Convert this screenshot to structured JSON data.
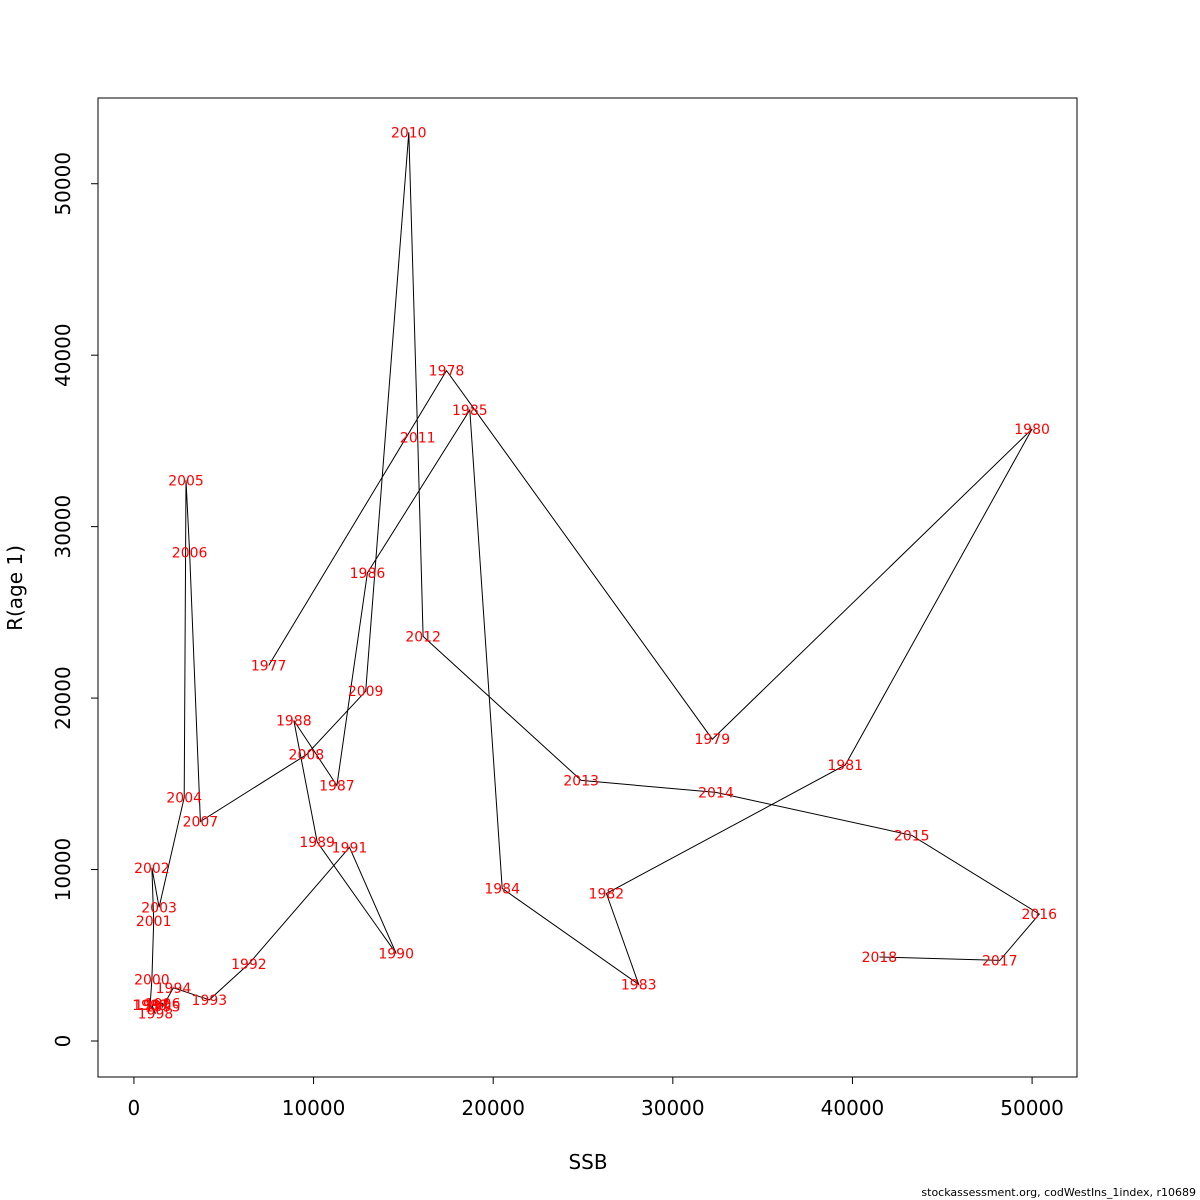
{
  "chart_data": {
    "type": "line",
    "xlabel": "SSB",
    "ylabel": "R(age 1)",
    "xlim": [
      -2000,
      52500
    ],
    "ylim": [
      -2100,
      55000
    ],
    "x_ticks": [
      0,
      10000,
      20000,
      30000,
      40000,
      50000
    ],
    "y_ticks": [
      0,
      10000,
      20000,
      30000,
      40000,
      50000
    ],
    "grid": false,
    "legend": "none",
    "line_color": "#000000",
    "label_color": "#ff0000",
    "points": [
      {
        "year": "1977",
        "x": 7500,
        "y": 21900
      },
      {
        "year": "1978",
        "x": 17400,
        "y": 39100
      },
      {
        "year": "1979",
        "x": 32200,
        "y": 17600
      },
      {
        "year": "1980",
        "x": 50000,
        "y": 35700
      },
      {
        "year": "1981",
        "x": 39600,
        "y": 16100
      },
      {
        "year": "1982",
        "x": 26300,
        "y": 8600
      },
      {
        "year": "1983",
        "x": 28100,
        "y": 3300
      },
      {
        "year": "1984",
        "x": 20500,
        "y": 8900
      },
      {
        "year": "1985",
        "x": 18700,
        "y": 36800
      },
      {
        "year": "1986",
        "x": 13000,
        "y": 27300
      },
      {
        "year": "1987",
        "x": 11300,
        "y": 14900
      },
      {
        "year": "1988",
        "x": 8900,
        "y": 18700
      },
      {
        "year": "1989",
        "x": 10200,
        "y": 11600
      },
      {
        "year": "1990",
        "x": 14600,
        "y": 5100
      },
      {
        "year": "1991",
        "x": 12000,
        "y": 11300
      },
      {
        "year": "1992",
        "x": 6400,
        "y": 4500
      },
      {
        "year": "1993",
        "x": 4200,
        "y": 2400
      },
      {
        "year": "1994",
        "x": 2200,
        "y": 3100
      },
      {
        "year": "1995",
        "x": 1600,
        "y": 2000
      },
      {
        "year": "1996",
        "x": 1600,
        "y": 2200
      },
      {
        "year": "1997",
        "x": 1000,
        "y": 2100
      },
      {
        "year": "1998",
        "x": 1200,
        "y": 1600
      },
      {
        "year": "1999",
        "x": 900,
        "y": 2100
      },
      {
        "year": "2000",
        "x": 1000,
        "y": 3600
      },
      {
        "year": "2001",
        "x": 1100,
        "y": 7000
      },
      {
        "year": "2002",
        "x": 1000,
        "y": 10100
      },
      {
        "year": "2003",
        "x": 1400,
        "y": 7800
      },
      {
        "year": "2004",
        "x": 2800,
        "y": 14200
      },
      {
        "year": "2005",
        "x": 2900,
        "y": 32700
      },
      {
        "year": "2006",
        "x": 3100,
        "y": 28500
      },
      {
        "year": "2007",
        "x": 3700,
        "y": 12800
      },
      {
        "year": "2008",
        "x": 9600,
        "y": 16700
      },
      {
        "year": "2009",
        "x": 12900,
        "y": 20400
      },
      {
        "year": "2010",
        "x": 15300,
        "y": 53000
      },
      {
        "year": "2011",
        "x": 15800,
        "y": 35200
      },
      {
        "year": "2012",
        "x": 16100,
        "y": 23600
      },
      {
        "year": "2013",
        "x": 24900,
        "y": 15200
      },
      {
        "year": "2014",
        "x": 32400,
        "y": 14500
      },
      {
        "year": "2015",
        "x": 43300,
        "y": 12000
      },
      {
        "year": "2016",
        "x": 50400,
        "y": 7400
      },
      {
        "year": "2017",
        "x": 48200,
        "y": 4700
      },
      {
        "year": "2018",
        "x": 41500,
        "y": 4900
      }
    ]
  },
  "footer": {
    "source_text": "stockassessment.org, codWestIns_1index, r10689"
  }
}
